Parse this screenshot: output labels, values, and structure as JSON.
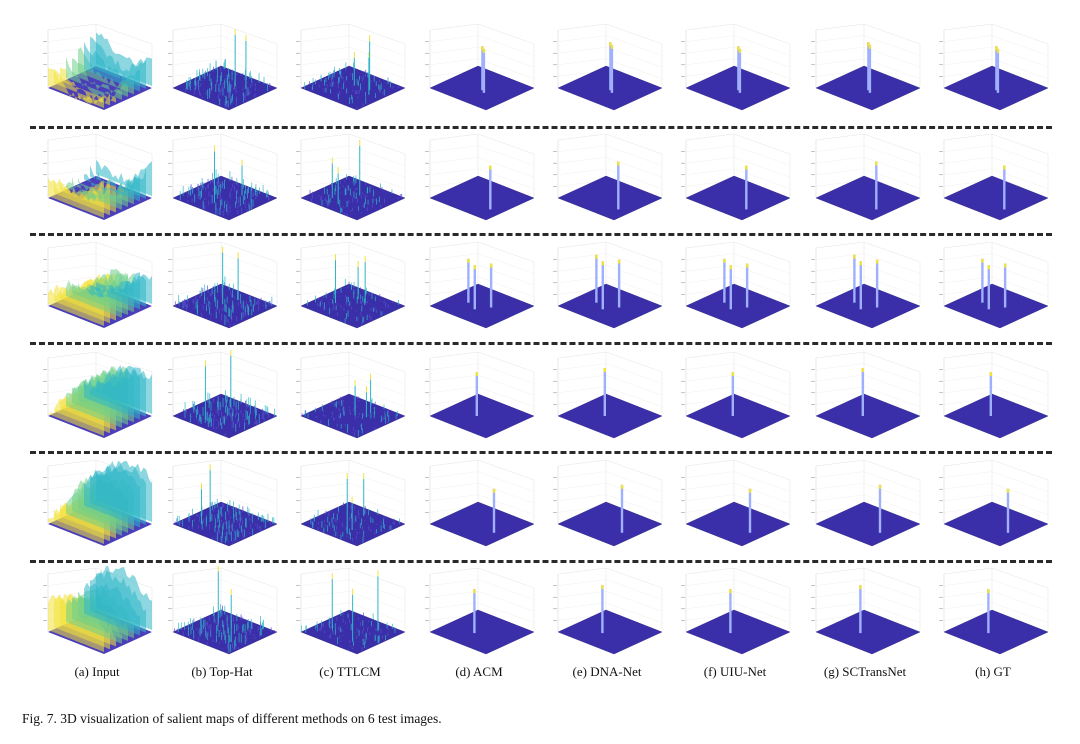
{
  "figure": {
    "columns": [
      {
        "label": "(a) Input",
        "kind": "input"
      },
      {
        "label": "(b) Top-Hat",
        "kind": "tophat"
      },
      {
        "label": "(c) TTLCM",
        "kind": "ttlcm"
      },
      {
        "label": "(d) ACM",
        "kind": "spikes"
      },
      {
        "label": "(e) DNA-Net",
        "kind": "spikes"
      },
      {
        "label": "(f) UIU-Net",
        "kind": "spikes"
      },
      {
        "label": "(g) SCTransNet",
        "kind": "spikes"
      },
      {
        "label": "(h) GT",
        "kind": "spikes"
      }
    ],
    "rows": [
      {
        "targets": [
          [
            0.55,
            0.45
          ],
          [
            0.62,
            0.4
          ]
        ]
      },
      {
        "targets": [
          [
            0.82,
            0.3
          ]
        ]
      },
      {
        "targets": [
          [
            0.3,
            0.45
          ],
          [
            0.5,
            0.35
          ],
          [
            0.62,
            0.55
          ]
        ]
      },
      {
        "targets": [
          [
            0.45,
            0.45
          ]
        ]
      },
      {
        "targets": [
          [
            0.8,
            0.4
          ]
        ]
      },
      {
        "targets": [
          [
            0.45,
            0.4
          ]
        ]
      }
    ],
    "caption": "Fig. 7.  3D visualization of salient maps of different methods on 6 test images."
  },
  "colors": {
    "surface_low": "#3a2fa8",
    "surface_mid": "#2fb6c8",
    "surface_high": "#f2e23a",
    "spike": "#9fb0ff",
    "separator": "#2a2a2a"
  }
}
